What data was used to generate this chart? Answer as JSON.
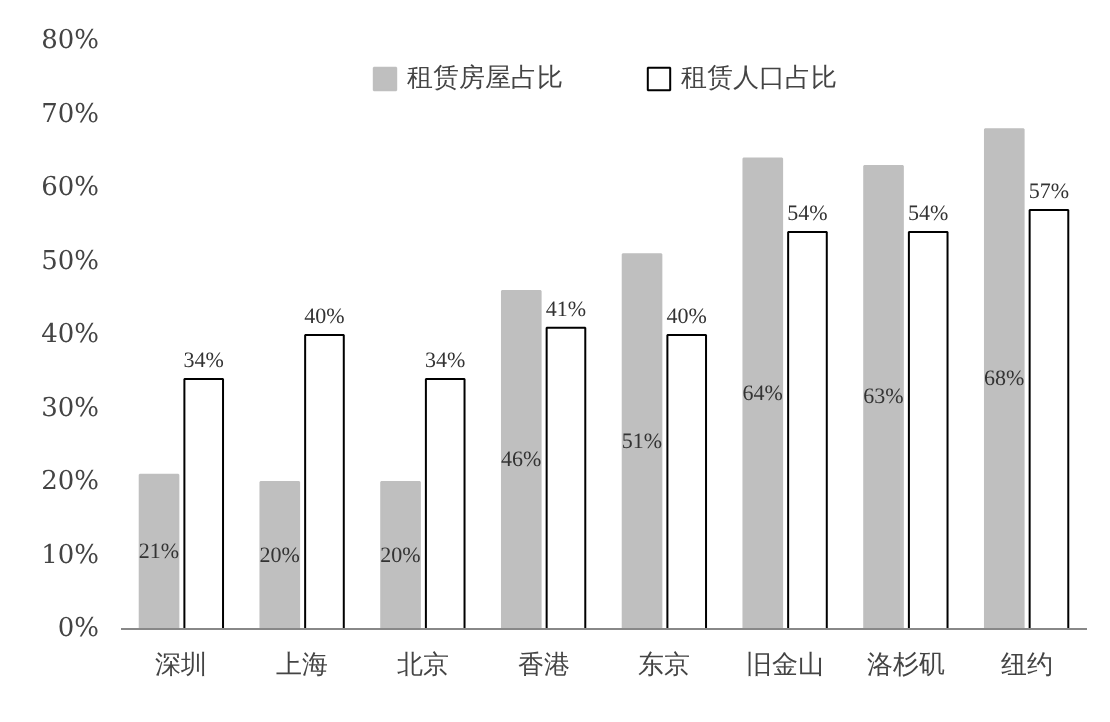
{
  "chart_data": {
    "type": "bar",
    "categories": [
      "深圳",
      "上海",
      "北京",
      "香港",
      "东京",
      "旧金山",
      "洛杉矶",
      "纽约"
    ],
    "series": [
      {
        "name": "租赁房屋占比",
        "color": "#bfbfbf",
        "values": [
          21,
          20,
          20,
          46,
          51,
          64,
          63,
          68
        ],
        "value_labels": [
          "21%",
          "20%",
          "20%",
          "46%",
          "51%",
          "64%",
          "63%",
          "68%"
        ]
      },
      {
        "name": "租赁人口占比",
        "color": "#ffffff",
        "values": [
          34,
          40,
          34,
          41,
          40,
          54,
          54,
          57
        ],
        "value_labels": [
          "34%",
          "40%",
          "34%",
          "41%",
          "40%",
          "54%",
          "54%",
          "57%"
        ]
      }
    ],
    "ylim": [
      0,
      80
    ],
    "yticks": [
      {
        "value": 0,
        "label": "0%"
      },
      {
        "value": 10,
        "label": "10%"
      },
      {
        "value": 20,
        "label": "20%"
      },
      {
        "value": 30,
        "label": "30%"
      },
      {
        "value": 40,
        "label": "40%"
      },
      {
        "value": 50,
        "label": "50%"
      },
      {
        "value": 60,
        "label": "60%"
      },
      {
        "value": 70,
        "label": "70%"
      },
      {
        "value": 80,
        "label": "80%"
      }
    ],
    "grid": false,
    "legend": "top"
  }
}
